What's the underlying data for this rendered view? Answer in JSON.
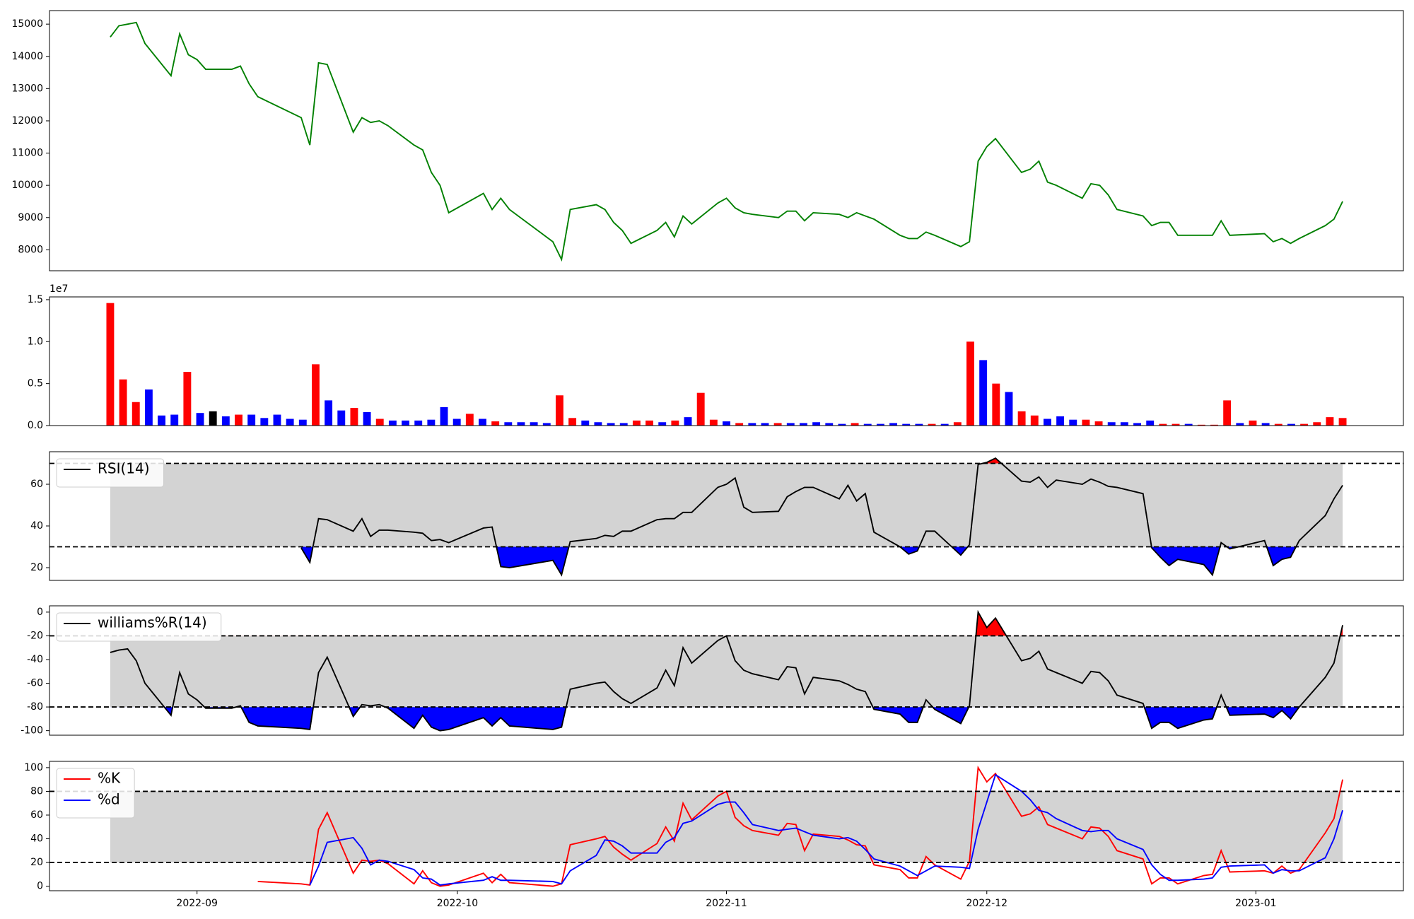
{
  "chart_data": [
    {
      "type": "line",
      "color": "green",
      "x": [
        "2022-08-22",
        "2022-08-23",
        "2022-08-24",
        "2022-08-25",
        "2022-08-26",
        "2022-08-29",
        "2022-08-30",
        "2022-08-31",
        "2022-09-01",
        "2022-09-02",
        "2022-09-05",
        "2022-09-06",
        "2022-09-07",
        "2022-09-08",
        "2022-09-13",
        "2022-09-14",
        "2022-09-15",
        "2022-09-16",
        "2022-09-19",
        "2022-09-20",
        "2022-09-21",
        "2022-09-22",
        "2022-09-23",
        "2022-09-26",
        "2022-09-27",
        "2022-09-28",
        "2022-09-29",
        "2022-09-30",
        "2022-10-04",
        "2022-10-05",
        "2022-10-06",
        "2022-10-07",
        "2022-10-12",
        "2022-10-13",
        "2022-10-14",
        "2022-10-17",
        "2022-10-18",
        "2022-10-19",
        "2022-10-20",
        "2022-10-21",
        "2022-10-24",
        "2022-10-25",
        "2022-10-26",
        "2022-10-27",
        "2022-10-28",
        "2022-10-31",
        "2022-11-01",
        "2022-11-02",
        "2022-11-03",
        "2022-11-04",
        "2022-11-07",
        "2022-11-08",
        "2022-11-09",
        "2022-11-10",
        "2022-11-11",
        "2022-11-14",
        "2022-11-15",
        "2022-11-16",
        "2022-11-17",
        "2022-11-18",
        "2022-11-21",
        "2022-11-22",
        "2022-11-23",
        "2022-11-24",
        "2022-11-25",
        "2022-11-28",
        "2022-11-29",
        "2022-11-30",
        "2022-12-01",
        "2022-12-02",
        "2022-12-05",
        "2022-12-06",
        "2022-12-07",
        "2022-12-08",
        "2022-12-09",
        "2022-12-12",
        "2022-12-13",
        "2022-12-14",
        "2022-12-15",
        "2022-12-16",
        "2022-12-19",
        "2022-12-20",
        "2022-12-21",
        "2022-12-22",
        "2022-12-23",
        "2022-12-26",
        "2022-12-27",
        "2022-12-28",
        "2022-12-29",
        "2023-01-02",
        "2023-01-03",
        "2023-01-04",
        "2023-01-05",
        "2023-01-06",
        "2023-01-09",
        "2023-01-10",
        "2023-01-11"
      ],
      "values": [
        14600,
        14950,
        15000,
        15050,
        14400,
        13400,
        14700,
        14050,
        13900,
        13600,
        13600,
        13700,
        13150,
        12750,
        12100,
        11250,
        13800,
        13750,
        11650,
        12100,
        11950,
        12000,
        11850,
        11250,
        11100,
        10400,
        10000,
        9150,
        9750,
        9250,
        9600,
        9250,
        8250,
        7700,
        9250,
        9400,
        9250,
        8850,
        8600,
        8200,
        8600,
        8850,
        8400,
        9050,
        8800,
        9450,
        9600,
        9300,
        9150,
        9100,
        9000,
        9200,
        9200,
        8900,
        9150,
        9100,
        9000,
        9150,
        9050,
        8950,
        8450,
        8350,
        8350,
        8550,
        8450,
        8100,
        8250,
        10750,
        11200,
        11450,
        10400,
        10500,
        10750,
        10100,
        10000,
        9600,
        10050,
        10000,
        9700,
        9250,
        9050,
        8750,
        8850,
        8850,
        8450,
        8450,
        8450,
        8900,
        8450,
        8500,
        8250,
        8350,
        8200,
        8350,
        8750,
        8950,
        9500
      ],
      "xlim": [
        "2022-08-15",
        "2023-01-18"
      ],
      "ylim": [
        7350,
        15420
      ],
      "yticks": [
        8000,
        9000,
        10000,
        11000,
        12000,
        13000,
        14000,
        15000
      ]
    },
    {
      "type": "bar",
      "y_offset_label": "1e7",
      "values": [
        14600000,
        5500000,
        2800000,
        4300000,
        1200000,
        1300000,
        6400000,
        1500000,
        1700000,
        1100000,
        1300000,
        1300000,
        900000,
        1300000,
        800000,
        700000,
        7300000,
        3000000,
        1800000,
        2100000,
        1600000,
        800000,
        600000,
        600000,
        600000,
        700000,
        2200000,
        800000,
        1400000,
        800000,
        500000,
        400000,
        400000,
        400000,
        300000,
        3600000,
        900000,
        600000,
        400000,
        300000,
        300000,
        600000,
        600000,
        400000,
        600000,
        1000000,
        3900000,
        700000,
        500000,
        300000,
        300000,
        300000,
        300000,
        300000,
        300000,
        400000,
        300000,
        200000,
        300000,
        200000,
        200000,
        300000,
        200000,
        200000,
        200000,
        200000,
        400000,
        10000000,
        7800000,
        5000000,
        4000000,
        1700000,
        1200000,
        800000,
        1100000,
        700000,
        700000,
        500000,
        400000,
        400000,
        300000,
        600000,
        200000,
        200000,
        200000,
        100000,
        100000,
        3000000,
        300000,
        600000,
        300000,
        200000,
        200000,
        200000,
        400000,
        1000000,
        900000
      ],
      "colors": [
        "red",
        "red",
        "red",
        "blue",
        "blue",
        "blue",
        "red",
        "blue",
        "black",
        "blue",
        "red",
        "blue",
        "blue",
        "blue",
        "blue",
        "blue",
        "red",
        "blue",
        "blue",
        "red",
        "blue",
        "red",
        "blue",
        "blue",
        "blue",
        "blue",
        "blue",
        "blue",
        "red",
        "blue",
        "red",
        "blue",
        "blue",
        "blue",
        "blue",
        "red",
        "red",
        "blue",
        "blue",
        "blue",
        "blue",
        "red",
        "red",
        "blue",
        "red",
        "blue",
        "red",
        "red",
        "blue",
        "red",
        "blue",
        "blue",
        "red",
        "blue",
        "blue",
        "blue",
        "blue",
        "blue",
        "red",
        "blue",
        "blue",
        "blue",
        "blue",
        "blue",
        "red",
        "blue",
        "red",
        "red",
        "blue",
        "red",
        "blue",
        "red",
        "red",
        "blue",
        "blue",
        "blue",
        "red",
        "red",
        "blue",
        "blue",
        "blue",
        "blue",
        "red",
        "red",
        "blue",
        "red",
        "red",
        "red",
        "blue",
        "red",
        "blue",
        "red",
        "blue",
        "red",
        "red",
        "red",
        "red"
      ],
      "ylim": [
        0,
        15330000
      ],
      "yticks": [
        {
          "value": 0,
          "label": "0.0"
        },
        {
          "value": 5000000,
          "label": "0.5"
        },
        {
          "value": 10000000,
          "label": "1.0"
        },
        {
          "value": 15000000,
          "label": "1.5"
        }
      ]
    },
    {
      "type": "line",
      "legend": "upper left",
      "hlines": [
        70,
        30
      ],
      "fill_above": "red",
      "fill_below": "blue",
      "band_color": "lightgray",
      "series": [
        {
          "name": "RSI(14)",
          "color": "black",
          "values": [
            null,
            null,
            null,
            null,
            null,
            null,
            null,
            null,
            null,
            null,
            null,
            null,
            null,
            null,
            29.5,
            22.5,
            43.5,
            43,
            37.5,
            43.5,
            35,
            38,
            38,
            37,
            36.5,
            33,
            33.5,
            32,
            39,
            39.5,
            20.5,
            20,
            23.5,
            16.5,
            32.5,
            34,
            35.5,
            35,
            37.5,
            37.5,
            43,
            43.5,
            43.5,
            46.5,
            46.5,
            58.5,
            60,
            63,
            49,
            46.5,
            47,
            54,
            56.5,
            58.5,
            58.5,
            53,
            59.5,
            52,
            55.5,
            37,
            30,
            26.5,
            28,
            37.5,
            37.5,
            26,
            31,
            69.5,
            70.5,
            72.5,
            61.5,
            61,
            63.5,
            58.5,
            62,
            60,
            62.5,
            61,
            59,
            58.5,
            55.5,
            29.5,
            25,
            21,
            24,
            21.5,
            16.5,
            32,
            29,
            33,
            21,
            24,
            25,
            33,
            45,
            53,
            59.5
          ]
        }
      ],
      "ylim": [
        13.9,
        75.6
      ],
      "yticks": [
        20,
        40,
        60
      ]
    },
    {
      "type": "line",
      "legend": "upper left",
      "hlines": [
        -20,
        -80
      ],
      "fill_above": "red",
      "fill_below": "blue",
      "band_color": "lightgray",
      "series": [
        {
          "name": "williams%R(14)",
          "color": "black",
          "values": [
            -34,
            -32,
            -31,
            -41,
            -60,
            -87,
            -51,
            -69,
            -74,
            -81,
            -81,
            -79,
            -93,
            -96,
            -98,
            -99,
            -51,
            -38,
            -88,
            -78,
            -79,
            -78,
            -81,
            -98,
            -87,
            -97,
            -100,
            -99,
            -89,
            -96,
            -89,
            -96,
            -99,
            -97,
            -65,
            -60,
            -59,
            -67,
            -73,
            -77,
            -64,
            -49,
            -62,
            -30,
            -43,
            -24,
            -20,
            -41,
            -49,
            -52,
            -57,
            -46,
            -47,
            -69,
            -55,
            -58,
            -61,
            -65,
            -67,
            -82,
            -86,
            -93,
            -93,
            -74,
            -82,
            -94,
            -79,
            0,
            -13,
            -5,
            -41,
            -39,
            -33,
            -48,
            -51,
            -60,
            -50,
            -51,
            -58,
            -70,
            -77,
            -98,
            -93,
            -93,
            -98,
            -91,
            -90,
            -70,
            -87,
            -86,
            -89,
            -83,
            -90,
            -80,
            -55,
            -43,
            -11
          ]
        }
      ],
      "ylim": [
        -103.8,
        5.3
      ],
      "yticks": [
        0,
        -20,
        -40,
        -60,
        -80,
        -100
      ]
    },
    {
      "type": "line",
      "legend": "upper left",
      "hlines": [
        80,
        20
      ],
      "band_color": "lightgray",
      "series": [
        {
          "name": "%K",
          "color": "red",
          "values": [
            null,
            null,
            null,
            null,
            null,
            null,
            null,
            null,
            null,
            null,
            null,
            null,
            null,
            4,
            2,
            1,
            48,
            62,
            11,
            22,
            21,
            22,
            19,
            2,
            13,
            3,
            0,
            1,
            11,
            3,
            10,
            3,
            0,
            2,
            35,
            40,
            42,
            33,
            27,
            22,
            36,
            50,
            38,
            70,
            56,
            76,
            80,
            58,
            51,
            47,
            43,
            53,
            52,
            30,
            44,
            42,
            39,
            35,
            34,
            18,
            14,
            7,
            7,
            25,
            18,
            6,
            21,
            100,
            88,
            95,
            59,
            61,
            67,
            52,
            49,
            40,
            50,
            49,
            42,
            30,
            23,
            2,
            7,
            7,
            2,
            9,
            10,
            30,
            12,
            13,
            11,
            17,
            11,
            14,
            45,
            57,
            90
          ]
        },
        {
          "name": "%d",
          "color": "blue",
          "values": [
            null,
            null,
            null,
            null,
            null,
            null,
            null,
            null,
            null,
            null,
            null,
            null,
            null,
            null,
            null,
            1,
            17,
            37,
            41,
            32,
            18,
            22,
            21,
            14,
            7,
            6,
            1,
            2,
            5,
            8,
            5,
            5,
            4,
            2,
            13,
            26,
            39,
            38,
            34,
            28,
            28,
            37,
            41,
            53,
            55,
            69,
            71,
            71,
            62,
            52,
            47,
            48,
            49,
            46,
            43,
            40,
            41,
            38,
            31,
            23,
            17,
            13,
            9,
            13,
            17,
            16,
            15,
            48,
            71,
            94,
            80,
            73,
            64,
            62,
            57,
            47,
            46,
            47,
            47,
            40,
            31,
            18,
            10,
            5,
            5,
            6,
            7,
            16,
            17,
            18,
            11,
            14,
            13,
            13,
            24,
            40,
            64
          ]
        }
      ],
      "ylim": [
        -3.8,
        105.3
      ],
      "yticks": [
        0,
        20,
        40,
        60,
        80,
        100
      ],
      "xticks": [
        {
          "value": "2022-09-01",
          "label": "2022-09"
        },
        {
          "value": "2022-10-01",
          "label": "2022-10"
        },
        {
          "value": "2022-11-01",
          "label": "2022-11"
        },
        {
          "value": "2022-12-01",
          "label": "2022-12"
        },
        {
          "value": "2023-01-01",
          "label": "2023-01"
        }
      ]
    }
  ]
}
